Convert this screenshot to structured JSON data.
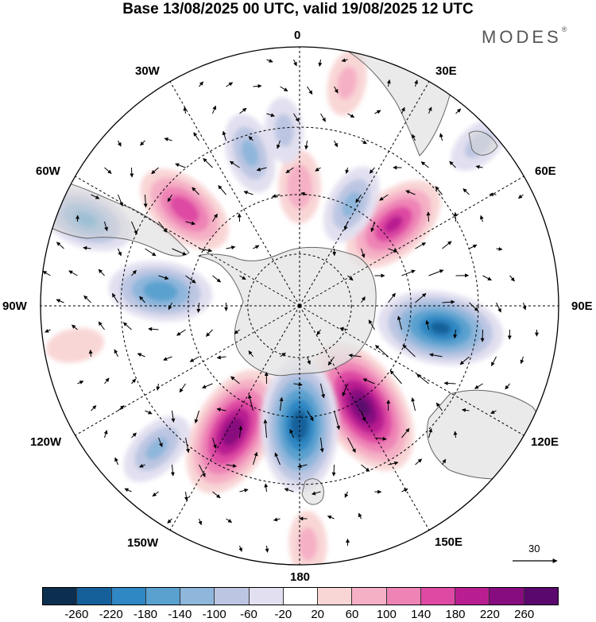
{
  "title": "Base 13/08/2025 00 UTC, valid 19/08/2025 12 UTC",
  "brand": "MODES",
  "brand_mark": "®",
  "projection": "south-polar-stereographic",
  "longitude_labels": {
    "top": "0",
    "top_right": "30E",
    "right_upper": "60E",
    "right": "90E",
    "right_lower": "120E",
    "bottom_right": "150E",
    "bottom": "180",
    "bottom_left": "150W",
    "left_lower": "120W",
    "left": "90W",
    "left_upper": "60W",
    "top_left": "30W"
  },
  "reference_vector": {
    "value": "30"
  },
  "colorbar": {
    "colors": [
      "#0d2f4f",
      "#15609a",
      "#2f87c3",
      "#5aa1cf",
      "#8fb6db",
      "#bcc6e2",
      "#e2e0f0",
      "#ffffff",
      "#f9d6d6",
      "#f5b0c6",
      "#ee84b6",
      "#de4aa3",
      "#b91e91",
      "#870c7f",
      "#5a086d"
    ],
    "ticks": [
      "-260",
      "-220",
      "-180",
      "-140",
      "-100",
      "-60",
      "-20",
      "20",
      "60",
      "100",
      "140",
      "180",
      "220",
      "260"
    ]
  },
  "anomaly_centers": [
    {
      "sign": "positive",
      "bearing_deg": 148,
      "dist": 0.46,
      "magnitude": 260
    },
    {
      "sign": "positive",
      "bearing_deg": 208,
      "dist": 0.55,
      "magnitude": 240
    },
    {
      "sign": "positive",
      "bearing_deg": 49,
      "dist": 0.48,
      "magnitude": 180
    },
    {
      "sign": "positive",
      "bearing_deg": -50,
      "dist": 0.58,
      "magnitude": 160
    },
    {
      "sign": "positive",
      "bearing_deg": 0,
      "dist": 0.46,
      "magnitude": 80
    },
    {
      "sign": "positive",
      "bearing_deg": 12,
      "dist": 0.88,
      "magnitude": 60
    },
    {
      "sign": "positive",
      "bearing_deg": -100,
      "dist": 0.88,
      "magnitude": 40
    },
    {
      "sign": "positive",
      "bearing_deg": 178,
      "dist": 0.92,
      "magnitude": 60
    },
    {
      "sign": "negative",
      "bearing_deg": 180,
      "dist": 0.46,
      "magnitude": 240
    },
    {
      "sign": "negative",
      "bearing_deg": 99,
      "dist": 0.55,
      "magnitude": 220
    },
    {
      "sign": "negative",
      "bearing_deg": -84,
      "dist": 0.54,
      "magnitude": 160
    },
    {
      "sign": "negative",
      "bearing_deg": -68,
      "dist": 0.89,
      "magnitude": 140
    },
    {
      "sign": "negative",
      "bearing_deg": -18,
      "dist": 0.62,
      "magnitude": 100
    },
    {
      "sign": "negative",
      "bearing_deg": 27,
      "dist": 0.44,
      "magnitude": 100
    },
    {
      "sign": "negative",
      "bearing_deg": -135,
      "dist": 0.78,
      "magnitude": 100
    },
    {
      "sign": "negative",
      "bearing_deg": -5,
      "dist": 0.68,
      "magnitude": 60
    },
    {
      "sign": "negative",
      "bearing_deg": 48,
      "dist": 0.93,
      "magnitude": 60
    }
  ]
}
